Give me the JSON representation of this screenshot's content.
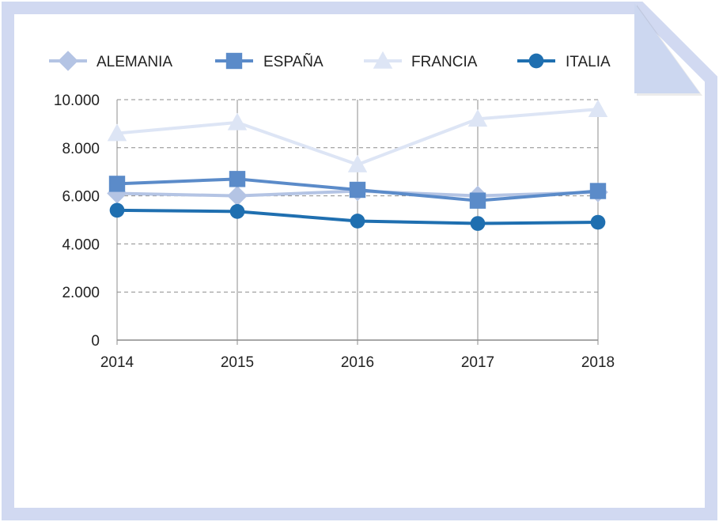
{
  "chart_data": {
    "type": "line",
    "x": [
      "2014",
      "2015",
      "2016",
      "2017",
      "2018"
    ],
    "ylim": [
      0,
      10000
    ],
    "yticks": [
      {
        "value": 0,
        "label": "0"
      },
      {
        "value": 2000,
        "label": "2.000"
      },
      {
        "value": 4000,
        "label": "4.000"
      },
      {
        "value": 6000,
        "label": "6.000"
      },
      {
        "value": 8000,
        "label": "8.000"
      },
      {
        "value": 10000,
        "label": "10.000"
      }
    ],
    "grid": {
      "horizontal": "dashed",
      "vertical": "solid"
    },
    "legend_position": "top",
    "series": [
      {
        "name": "ALEMANIA",
        "marker": "diamond",
        "color": "#b4c4e4",
        "values": [
          6100,
          6000,
          6200,
          6000,
          6150
        ]
      },
      {
        "name": "ESPAÑA",
        "marker": "square",
        "color": "#5b8bc9",
        "values": [
          6500,
          6700,
          6250,
          5800,
          6200
        ]
      },
      {
        "name": "FRANCIA",
        "marker": "triangle",
        "color": "#dde5f5",
        "values": [
          8600,
          9050,
          7300,
          9200,
          9600
        ]
      },
      {
        "name": "ITALIA",
        "marker": "circle",
        "color": "#1f6fb0",
        "values": [
          5400,
          5350,
          4950,
          4850,
          4900
        ]
      }
    ]
  },
  "frame": {
    "border_color": "#d1d9f1",
    "fold_color": "#ccd7f0"
  }
}
